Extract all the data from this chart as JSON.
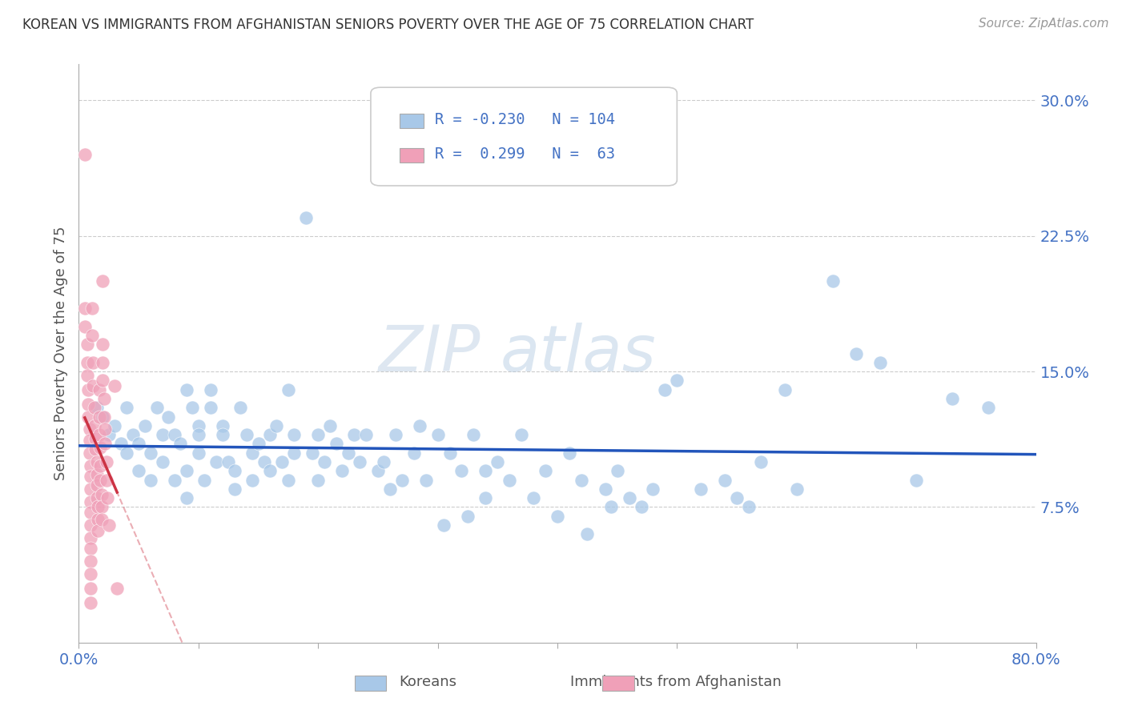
{
  "title": "KOREAN VS IMMIGRANTS FROM AFGHANISTAN SENIORS POVERTY OVER THE AGE OF 75 CORRELATION CHART",
  "source_text": "Source: ZipAtlas.com",
  "ylabel": "Seniors Poverty Over the Age of 75",
  "xlim": [
    0.0,
    0.8
  ],
  "ylim": [
    0.0,
    0.32
  ],
  "ytick_values": [
    0.075,
    0.15,
    0.225,
    0.3
  ],
  "ytick_labels": [
    "7.5%",
    "15.0%",
    "22.5%",
    "30.0%"
  ],
  "color_korean": "#a8c8e8",
  "color_afghan": "#f0a0b8",
  "color_korean_line": "#2255bb",
  "color_afghan_line": "#cc3344",
  "watermark_zip": "ZIP",
  "watermark_atlas": "atlas",
  "title_color": "#333333",
  "axis_label_color": "#4472c4",
  "korean_data": [
    [
      0.015,
      0.13
    ],
    [
      0.02,
      0.125
    ],
    [
      0.025,
      0.115
    ],
    [
      0.03,
      0.12
    ],
    [
      0.035,
      0.11
    ],
    [
      0.04,
      0.105
    ],
    [
      0.04,
      0.13
    ],
    [
      0.045,
      0.115
    ],
    [
      0.05,
      0.11
    ],
    [
      0.05,
      0.095
    ],
    [
      0.055,
      0.12
    ],
    [
      0.06,
      0.105
    ],
    [
      0.06,
      0.09
    ],
    [
      0.065,
      0.13
    ],
    [
      0.07,
      0.115
    ],
    [
      0.07,
      0.1
    ],
    [
      0.075,
      0.125
    ],
    [
      0.08,
      0.115
    ],
    [
      0.08,
      0.09
    ],
    [
      0.085,
      0.11
    ],
    [
      0.09,
      0.14
    ],
    [
      0.09,
      0.095
    ],
    [
      0.09,
      0.08
    ],
    [
      0.095,
      0.13
    ],
    [
      0.1,
      0.12
    ],
    [
      0.1,
      0.115
    ],
    [
      0.1,
      0.105
    ],
    [
      0.105,
      0.09
    ],
    [
      0.11,
      0.14
    ],
    [
      0.11,
      0.13
    ],
    [
      0.115,
      0.1
    ],
    [
      0.12,
      0.12
    ],
    [
      0.12,
      0.115
    ],
    [
      0.125,
      0.1
    ],
    [
      0.13,
      0.085
    ],
    [
      0.13,
      0.095
    ],
    [
      0.135,
      0.13
    ],
    [
      0.14,
      0.115
    ],
    [
      0.145,
      0.105
    ],
    [
      0.145,
      0.09
    ],
    [
      0.15,
      0.11
    ],
    [
      0.155,
      0.1
    ],
    [
      0.16,
      0.095
    ],
    [
      0.16,
      0.115
    ],
    [
      0.165,
      0.12
    ],
    [
      0.17,
      0.1
    ],
    [
      0.175,
      0.14
    ],
    [
      0.175,
      0.09
    ],
    [
      0.18,
      0.115
    ],
    [
      0.18,
      0.105
    ],
    [
      0.19,
      0.235
    ],
    [
      0.195,
      0.105
    ],
    [
      0.2,
      0.09
    ],
    [
      0.2,
      0.115
    ],
    [
      0.205,
      0.1
    ],
    [
      0.21,
      0.12
    ],
    [
      0.215,
      0.11
    ],
    [
      0.22,
      0.095
    ],
    [
      0.225,
      0.105
    ],
    [
      0.23,
      0.115
    ],
    [
      0.235,
      0.1
    ],
    [
      0.24,
      0.115
    ],
    [
      0.25,
      0.095
    ],
    [
      0.255,
      0.1
    ],
    [
      0.26,
      0.085
    ],
    [
      0.265,
      0.115
    ],
    [
      0.27,
      0.09
    ],
    [
      0.28,
      0.105
    ],
    [
      0.285,
      0.12
    ],
    [
      0.29,
      0.09
    ],
    [
      0.3,
      0.115
    ],
    [
      0.305,
      0.065
    ],
    [
      0.31,
      0.105
    ],
    [
      0.32,
      0.095
    ],
    [
      0.325,
      0.07
    ],
    [
      0.33,
      0.115
    ],
    [
      0.34,
      0.095
    ],
    [
      0.34,
      0.08
    ],
    [
      0.35,
      0.1
    ],
    [
      0.36,
      0.09
    ],
    [
      0.37,
      0.115
    ],
    [
      0.38,
      0.08
    ],
    [
      0.39,
      0.095
    ],
    [
      0.4,
      0.07
    ],
    [
      0.41,
      0.105
    ],
    [
      0.42,
      0.09
    ],
    [
      0.425,
      0.06
    ],
    [
      0.44,
      0.085
    ],
    [
      0.445,
      0.075
    ],
    [
      0.45,
      0.095
    ],
    [
      0.46,
      0.08
    ],
    [
      0.47,
      0.075
    ],
    [
      0.48,
      0.085
    ],
    [
      0.49,
      0.14
    ],
    [
      0.5,
      0.145
    ],
    [
      0.52,
      0.085
    ],
    [
      0.54,
      0.09
    ],
    [
      0.55,
      0.08
    ],
    [
      0.56,
      0.075
    ],
    [
      0.57,
      0.1
    ],
    [
      0.59,
      0.14
    ],
    [
      0.6,
      0.085
    ],
    [
      0.63,
      0.2
    ],
    [
      0.65,
      0.16
    ],
    [
      0.67,
      0.155
    ],
    [
      0.7,
      0.09
    ],
    [
      0.73,
      0.135
    ],
    [
      0.76,
      0.13
    ]
  ],
  "afghan_data": [
    [
      0.005,
      0.27
    ],
    [
      0.005,
      0.185
    ],
    [
      0.005,
      0.175
    ],
    [
      0.007,
      0.165
    ],
    [
      0.007,
      0.155
    ],
    [
      0.007,
      0.148
    ],
    [
      0.008,
      0.14
    ],
    [
      0.008,
      0.132
    ],
    [
      0.008,
      0.125
    ],
    [
      0.009,
      0.118
    ],
    [
      0.009,
      0.112
    ],
    [
      0.009,
      0.105
    ],
    [
      0.01,
      0.098
    ],
    [
      0.01,
      0.092
    ],
    [
      0.01,
      0.085
    ],
    [
      0.01,
      0.078
    ],
    [
      0.01,
      0.072
    ],
    [
      0.01,
      0.065
    ],
    [
      0.01,
      0.058
    ],
    [
      0.01,
      0.052
    ],
    [
      0.01,
      0.045
    ],
    [
      0.01,
      0.038
    ],
    [
      0.01,
      0.03
    ],
    [
      0.01,
      0.022
    ],
    [
      0.011,
      0.185
    ],
    [
      0.011,
      0.17
    ],
    [
      0.012,
      0.155
    ],
    [
      0.012,
      0.142
    ],
    [
      0.013,
      0.13
    ],
    [
      0.013,
      0.12
    ],
    [
      0.014,
      0.113
    ],
    [
      0.014,
      0.107
    ],
    [
      0.015,
      0.1
    ],
    [
      0.015,
      0.093
    ],
    [
      0.015,
      0.087
    ],
    [
      0.015,
      0.08
    ],
    [
      0.016,
      0.075
    ],
    [
      0.016,
      0.068
    ],
    [
      0.016,
      0.062
    ],
    [
      0.017,
      0.14
    ],
    [
      0.017,
      0.125
    ],
    [
      0.017,
      0.115
    ],
    [
      0.018,
      0.108
    ],
    [
      0.018,
      0.098
    ],
    [
      0.018,
      0.09
    ],
    [
      0.019,
      0.082
    ],
    [
      0.019,
      0.075
    ],
    [
      0.019,
      0.068
    ],
    [
      0.02,
      0.2
    ],
    [
      0.02,
      0.165
    ],
    [
      0.02,
      0.155
    ],
    [
      0.02,
      0.145
    ],
    [
      0.021,
      0.135
    ],
    [
      0.021,
      0.125
    ],
    [
      0.022,
      0.118
    ],
    [
      0.022,
      0.11
    ],
    [
      0.023,
      0.1
    ],
    [
      0.023,
      0.09
    ],
    [
      0.024,
      0.08
    ],
    [
      0.025,
      0.065
    ],
    [
      0.03,
      0.142
    ],
    [
      0.032,
      0.03
    ]
  ]
}
